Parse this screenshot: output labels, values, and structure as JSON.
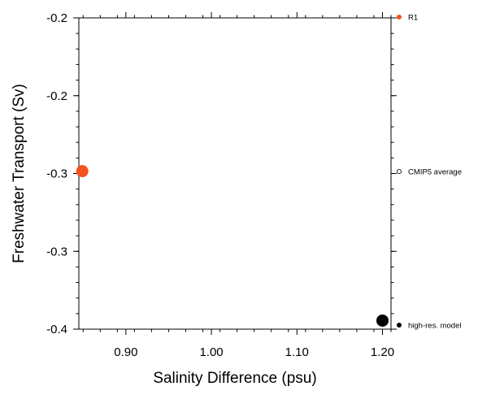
{
  "chart_data": {
    "type": "scatter",
    "title": "",
    "xlabel": "Salinity Difference (psu)",
    "ylabel": "Freshwater Transport (Sv)",
    "xlim": [
      0.845,
      1.21
    ],
    "ylim": [
      -0.4,
      -0.2
    ],
    "xticks": [
      0.9,
      1.0,
      1.1,
      1.2
    ],
    "xtick_labels": [
      "0.90",
      "1.00",
      "1.10",
      "1.20"
    ],
    "yticks": [
      -0.2,
      -0.25,
      -0.3,
      -0.35,
      -0.4
    ],
    "ytick_labels": [
      "-0.2",
      "-0.2",
      "-0.3",
      "-0.3",
      "-0.4"
    ],
    "series": [
      {
        "name": "R1",
        "x": [
          0.849
        ],
        "y": [
          -0.2985
        ],
        "color": "#f4511e",
        "filled": true
      },
      {
        "name": "high-res. model",
        "x": [
          1.2
        ],
        "y": [
          -0.3945
        ],
        "color": "#000000",
        "filled": true
      }
    ],
    "legend": [
      {
        "label": "R1",
        "color": "#f4511e",
        "filled": true
      },
      {
        "label": "CMIP5 average",
        "color": "#000000",
        "filled": false
      },
      {
        "label": "high-res. model",
        "color": "#000000",
        "filled": true
      }
    ],
    "legend_position": "right",
    "grid": false
  }
}
